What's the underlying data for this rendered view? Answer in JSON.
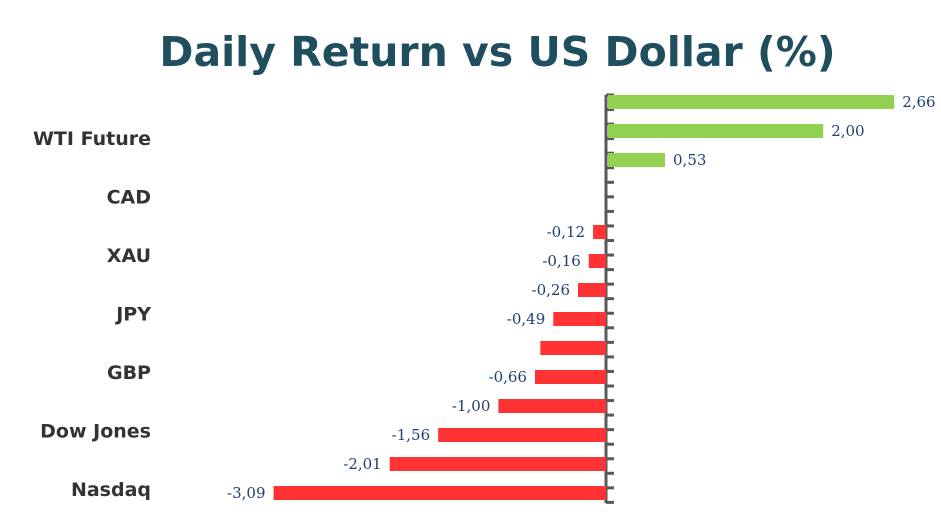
{
  "chart_data": {
    "type": "bar",
    "orientation": "horizontal",
    "title": "Daily Return vs US Dollar (%)",
    "category_labels": [
      "WTI Future",
      "CAD",
      "XAU",
      "JPY",
      "GBP",
      "Dow Jones",
      "Nasdaq"
    ],
    "values": [
      2.66,
      2.0,
      0.53,
      -0.12,
      -0.16,
      -0.26,
      -0.49,
      -0.61,
      -0.66,
      -1.0,
      -1.56,
      -2.01,
      -3.09
    ],
    "data_labels": [
      "2,66",
      "2,00",
      "0,53",
      "-0,12",
      "-0,16",
      "-0,26",
      "-0,49",
      "",
      "-0,66",
      "-1,00",
      "-1,56",
      "-2,01",
      "-3,09"
    ],
    "positive_color": "#92d050",
    "negative_color": "#ff3333",
    "xlim": [
      -3.09,
      2.66
    ],
    "grid": false,
    "legend": "none"
  }
}
